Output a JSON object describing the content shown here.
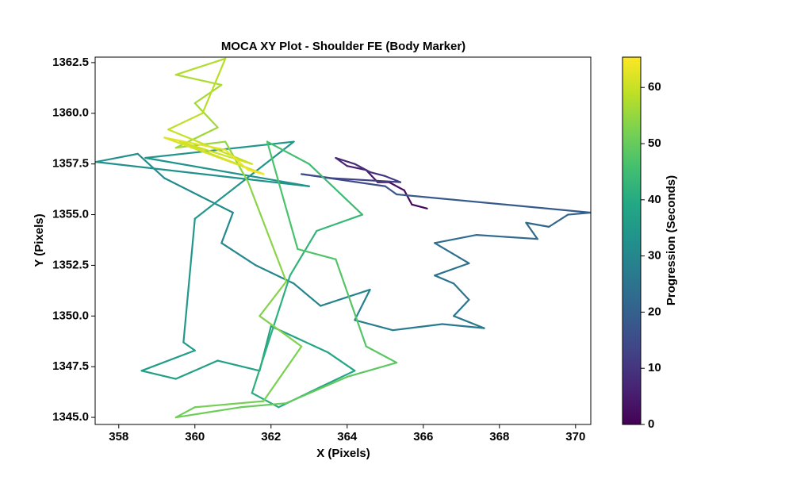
{
  "chart_data": {
    "type": "colored-line",
    "title": "MOCA XY Plot - Shoulder FE (Body Marker)",
    "x_label": "X (Pixels)",
    "y_label": "Y (Pixels)",
    "colorbar_label": "Progression (Seconds)",
    "colormap": "viridis",
    "x": [
      366.1,
      365.7,
      365.5,
      365.1,
      364.8,
      364.5,
      364.0,
      363.7,
      364.2,
      364.6,
      365.0,
      365.4,
      363.6,
      362.8,
      365.0,
      365.3,
      370.4,
      369.8,
      369.3,
      368.7,
      369.0,
      367.4,
      366.3,
      367.2,
      366.3,
      366.8,
      367.2,
      366.8,
      367.6,
      366.5,
      365.2,
      364.2,
      364.6,
      363.3,
      362.6,
      361.6,
      360.7,
      361.0,
      359.2,
      358.5,
      357.4,
      363.0,
      358.7,
      362.6,
      360.0,
      359.7,
      360.0,
      358.6,
      359.5,
      360.6,
      361.7,
      362.0,
      363.5,
      364.2,
      363.3,
      362.2,
      361.5,
      362.5,
      363.2,
      364.4,
      363.0,
      361.9,
      362.7,
      363.7,
      364.5,
      365.3,
      364.0,
      362.4,
      361.2,
      359.5,
      360.0,
      361.8,
      362.8,
      361.7,
      362.4,
      361.4,
      360.8,
      359.5,
      360.6,
      360.0,
      360.7,
      359.5,
      360.8,
      360.2,
      359.3,
      361.5,
      359.6,
      361.8,
      359.2,
      360.8,
      361.4,
      361.8
    ],
    "y": [
      1355.3,
      1355.5,
      1356.2,
      1356.6,
      1356.6,
      1357.2,
      1357.4,
      1357.8,
      1357.5,
      1357.1,
      1356.9,
      1356.6,
      1356.8,
      1357.0,
      1356.4,
      1356.0,
      1355.1,
      1355.0,
      1354.4,
      1354.6,
      1353.8,
      1354.0,
      1353.6,
      1352.6,
      1352.0,
      1351.6,
      1350.8,
      1350.0,
      1349.4,
      1349.6,
      1349.3,
      1349.8,
      1351.3,
      1350.5,
      1351.6,
      1352.5,
      1353.6,
      1355.1,
      1356.8,
      1358.0,
      1357.6,
      1356.4,
      1357.8,
      1358.6,
      1354.8,
      1348.7,
      1348.3,
      1347.3,
      1346.9,
      1347.8,
      1347.3,
      1349.5,
      1348.2,
      1347.3,
      1346.5,
      1345.5,
      1346.2,
      1352.0,
      1354.2,
      1355.0,
      1357.5,
      1358.6,
      1353.3,
      1352.8,
      1348.5,
      1347.7,
      1347.0,
      1345.7,
      1345.5,
      1345.0,
      1345.5,
      1345.8,
      1348.5,
      1350.0,
      1351.7,
      1356.6,
      1358.6,
      1358.3,
      1359.3,
      1360.5,
      1361.4,
      1361.9,
      1362.7,
      1360.0,
      1359.2,
      1357.5,
      1358.6,
      1357.0,
      1358.8,
      1358.2,
      1357.2,
      1357.0
    ],
    "t": [
      0,
      1,
      2,
      3,
      4,
      5,
      6,
      7,
      8,
      9,
      10,
      11,
      13,
      14,
      16,
      17,
      20,
      21,
      21.5,
      22,
      22.5,
      23,
      23.5,
      24,
      24.5,
      25,
      25.5,
      26,
      26.5,
      27,
      27.5,
      28,
      28.5,
      29,
      29.5,
      30,
      30.5,
      31,
      31.5,
      32,
      32.5,
      33,
      33.5,
      34,
      34.5,
      35,
      35.5,
      36,
      36.5,
      37,
      37.5,
      38,
      38.5,
      39,
      39.5,
      40,
      41,
      42,
      43,
      44,
      45,
      46,
      47,
      47.5,
      48,
      48.5,
      49,
      50,
      50.5,
      51,
      51.5,
      52,
      52.5,
      53,
      53.5,
      54,
      55,
      55.5,
      56,
      56.5,
      57,
      57.5,
      58,
      59,
      59.5,
      60,
      60.5,
      61,
      62,
      63,
      64,
      65
    ],
    "xlim": [
      357.38,
      370.4
    ],
    "ylim": [
      1344.65,
      1362.77
    ],
    "clim": [
      0,
      65.4
    ],
    "xticks": [
      358,
      360,
      362,
      364,
      366,
      368,
      370
    ],
    "yticks": [
      {
        "value": 1345,
        "label": "1345.0"
      },
      1347.5,
      {
        "value": 1350,
        "label": "1350.0"
      },
      1352.5,
      {
        "value": 1355,
        "label": "1355.0"
      },
      1357.5,
      {
        "value": 1360,
        "label": "1360.0"
      },
      1362.5
    ],
    "cticks": [
      0,
      10,
      20,
      30,
      40,
      50,
      60
    ]
  }
}
